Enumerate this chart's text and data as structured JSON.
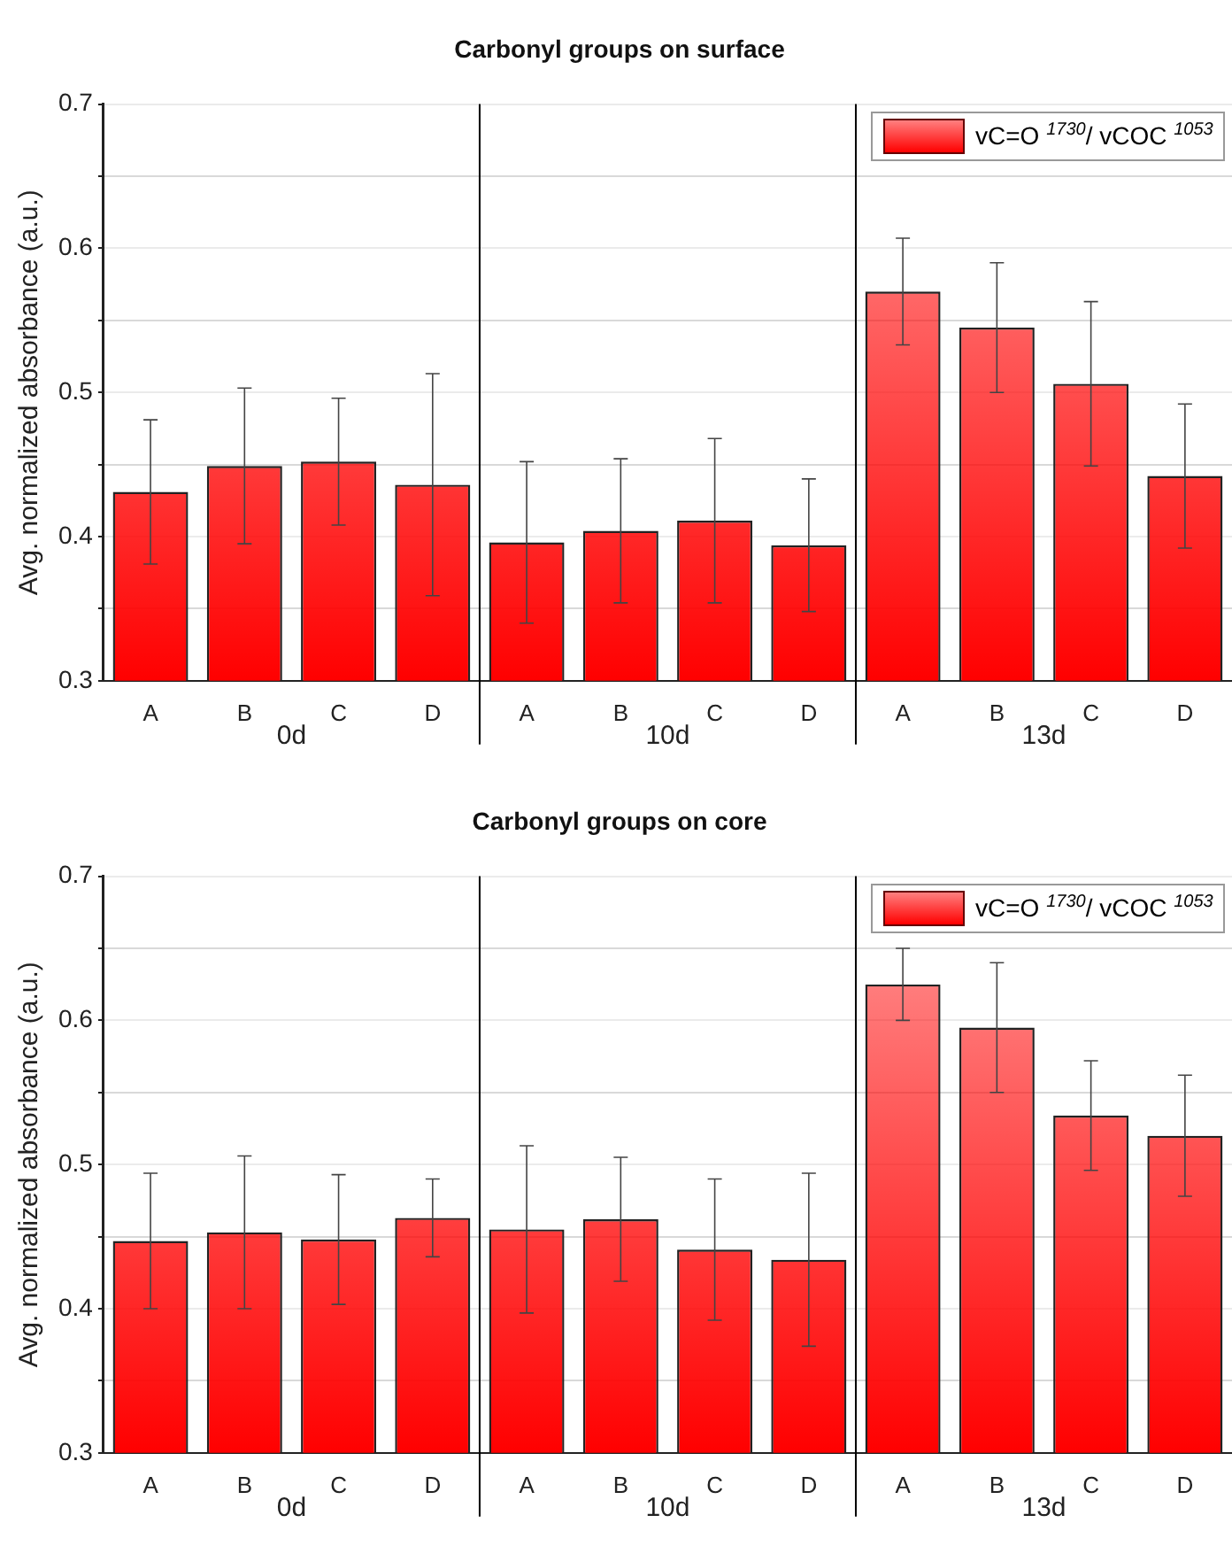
{
  "chart_data": [
    {
      "type": "bar",
      "title": "Carbonyl groups on surface",
      "ylabel": "Avg. normalized absorbance (a.u.)",
      "categories": [
        "A",
        "B",
        "C",
        "D",
        "A",
        "B",
        "C",
        "D",
        "A",
        "B",
        "C",
        "D"
      ],
      "series": [
        {
          "name": "vC=O $^{1730}$/ vCOC $^{1053}$",
          "color": "#ff0000",
          "values": [
            0.431,
            0.449,
            0.452,
            0.436,
            0.396,
            0.404,
            0.411,
            0.394,
            0.57,
            0.545,
            0.506,
            0.442
          ],
          "errors": [
            0.05,
            0.054,
            0.044,
            0.077,
            0.056,
            0.05,
            0.057,
            0.046,
            0.037,
            0.045,
            0.057,
            0.05
          ]
        }
      ],
      "annotations": [
        "0d",
        "10d",
        "13d"
      ],
      "ylim": [
        0.3,
        0.7
      ],
      "yticks": [
        0.3,
        {
          "value": 0.35,
          "label": null
        },
        0.4,
        {
          "value": 0.45,
          "label": null
        },
        0.5,
        {
          "value": 0.55,
          "label": null
        },
        0.6,
        {
          "value": 0.65,
          "label": null
        },
        0.7
      ],
      "grid": "y",
      "legend": "top right"
    },
    {
      "type": "bar",
      "title": "Carbonyl groups on core",
      "ylabel": "Avg. normalized absorbance (a.u.)",
      "categories": [
        "A",
        "B",
        "C",
        "D",
        "A",
        "B",
        "C",
        "D",
        "A",
        "B",
        "C",
        "D"
      ],
      "series": [
        {
          "name": "vC=O $^{1730}$/ vCOC $^{1053}$",
          "color": "#ff0000",
          "values": [
            0.447,
            0.453,
            0.448,
            0.463,
            0.455,
            0.462,
            0.441,
            0.434,
            0.625,
            0.595,
            0.534,
            0.52
          ],
          "errors": [
            0.047,
            0.053,
            0.045,
            0.027,
            0.058,
            0.043,
            0.049,
            0.06,
            0.025,
            0.045,
            0.038,
            0.042
          ]
        }
      ],
      "annotations": [
        "0d",
        "10d",
        "13d"
      ],
      "ylim": [
        0.3,
        0.7
      ],
      "yticks": [
        0.3,
        {
          "value": 0.35,
          "label": null
        },
        0.4,
        {
          "value": 0.45,
          "label": null
        },
        0.5,
        {
          "value": 0.55,
          "label": null
        },
        0.6,
        {
          "value": 0.65,
          "label": null
        },
        0.7
      ],
      "grid": "y",
      "legend": "top right"
    }
  ]
}
